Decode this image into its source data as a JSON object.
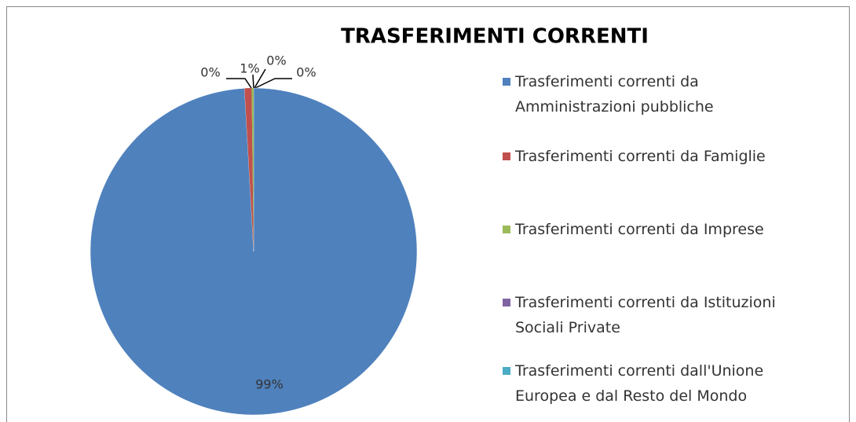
{
  "chart_data": {
    "type": "pie",
    "title": "TRASFERIMENTI CORRENTI",
    "categories": [
      "Trasferimenti correnti da Amministrazioni pubbliche",
      "Trasferimenti correnti da Famiglie",
      "Trasferimenti correnti da Imprese",
      "Trasferimenti correnti da Istituzioni Sociali Private",
      "Trasferimenti correnti dall'Unione Europea e dal Resto del Mondo"
    ],
    "values": [
      99.1,
      0.7,
      0.2,
      0,
      0
    ],
    "value_labels": [
      "99%",
      "1%",
      "0%",
      "0%",
      "0%"
    ],
    "colors": [
      "#4f81bd",
      "#c0504d",
      "#9bbb59",
      "#8064a2",
      "#4bacc6"
    ],
    "legend": "right"
  }
}
